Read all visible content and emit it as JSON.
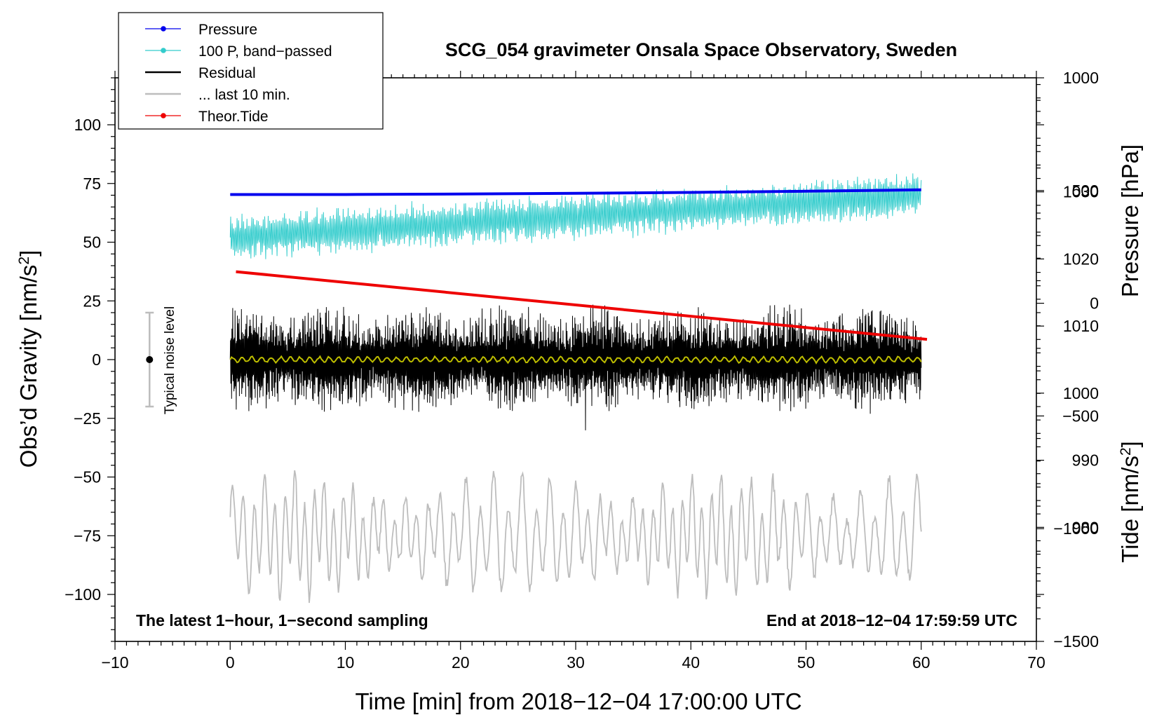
{
  "colors": {
    "pressure": "#0000ee",
    "bandpassed": "#33cccc",
    "residual": "#000000",
    "last10": "#bdbdbd",
    "tide": "#ee0000",
    "smooth": "#bdbd00"
  },
  "chart_data": {
    "type": "line",
    "title": "SCG_054 gravimeter Onsala Space Observatory, Sweden",
    "xlabel": "Time [min] from 2018−12−04 17:00:00 UTC",
    "xlim": [
      -10,
      70
    ],
    "x_ticks": [
      -10,
      0,
      10,
      20,
      30,
      40,
      50,
      60,
      70
    ],
    "x_tick_labels": [
      "−10",
      "0",
      "10",
      "20",
      "30",
      "40",
      "50",
      "60",
      "70"
    ],
    "left_axis": {
      "label_main": "Obs’d Gravity [nm/s",
      "label_sup": "2",
      "label_end": "]",
      "ylim": [
        -120,
        120
      ],
      "ticks": [
        100,
        75,
        50,
        25,
        0,
        -25,
        -50,
        -75,
        -100
      ],
      "tick_labels": [
        "100",
        "75",
        "50",
        "25",
        "0",
        "−25",
        "−50",
        "−75",
        "−100"
      ]
    },
    "pressure_axis": {
      "label": "Pressure [hPa]",
      "ylim": [
        963,
        1047
      ],
      "ticks": [
        1030,
        1020,
        1010,
        1000,
        990,
        980
      ],
      "tick_labels": [
        "1030",
        "1020",
        "1010",
        "1000",
        "990",
        "980"
      ]
    },
    "tide_axis": {
      "label_main": "Tide [nm/s",
      "label_sup": "2",
      "label_end": "]",
      "ylim": [
        -1500,
        1000
      ],
      "ticks": [
        1000,
        500,
        0,
        -500,
        -1000,
        -1500
      ],
      "tick_labels": [
        "1000",
        "500",
        "0",
        "−500",
        "−1000",
        "−1500"
      ]
    },
    "legend": {
      "placement": "top-left",
      "entries": [
        {
          "label": "Pressure",
          "color": "#0000ee",
          "marker": true
        },
        {
          "label": "100 P, band−passed",
          "color": "#33cccc",
          "marker": true
        },
        {
          "label": "Residual",
          "color": "#000000",
          "marker": false
        },
        {
          "label": "... last 10 min.",
          "color": "#bdbdbd",
          "marker": false
        },
        {
          "label": "Theor.Tide",
          "color": "#ee0000",
          "marker": true
        }
      ]
    },
    "noise_bar": {
      "label": "Typical noise level",
      "x": -7,
      "center": 0,
      "low": -20,
      "high": 20
    },
    "note_left": "The latest 1−hour, 1−second sampling",
    "note_right": "End at 2018−12−04 17:59:59 UTC",
    "series": [
      {
        "name": "Pressure",
        "axis": "gravity",
        "x": [
          0,
          10,
          20,
          30,
          40,
          50,
          60
        ],
        "values": [
          70.3,
          70.3,
          70.5,
          70.8,
          71.2,
          71.7,
          72.3
        ]
      },
      {
        "name": "100 P, band−passed",
        "axis": "gravity",
        "x_range": [
          0,
          60
        ],
        "trend_start": 52,
        "trend_end": 70,
        "amplitude": 9
      },
      {
        "name": "Residual",
        "axis": "gravity",
        "x_range": [
          0,
          60
        ],
        "center": 0,
        "amplitude": 22
      },
      {
        "name": "Residual, smoothed",
        "axis": "gravity",
        "x_range": [
          0,
          60
        ],
        "center": 0,
        "amplitude": 1.5
      },
      {
        "name": "... last 10 min.",
        "axis": "gravity",
        "x_range": [
          0,
          60
        ],
        "center": -75,
        "amplitude": 25
      },
      {
        "name": "Theor.Tide",
        "axis": "tide",
        "x": [
          0.5,
          60.5
        ],
        "values": [
          140,
          -160
        ]
      }
    ]
  }
}
